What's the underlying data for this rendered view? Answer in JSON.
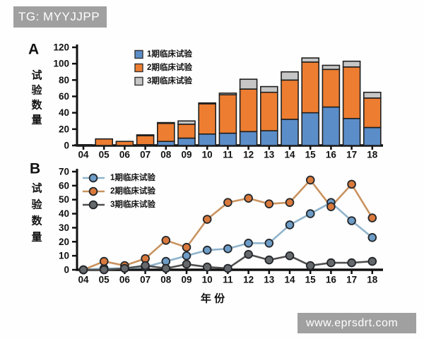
{
  "watermarks": {
    "top_left": "TG: MYYJJPP",
    "bottom_right": "www.eprsdrt.com"
  },
  "colors": {
    "phase1_fill": "#5b8dc8",
    "phase2_fill": "#ed7d31",
    "phase3_fill": "#c6c6c6",
    "bar_outline": "#1f1f1f",
    "line1": "#8fb3cc",
    "line2": "#c9935f",
    "line3": "#4f4f4f",
    "marker1": "#6d9cc6",
    "marker2": "#d9793c",
    "marker3": "#66696c",
    "marker_outline": "#22262a",
    "axis": "#111111",
    "watermark_bg": "#a0a0a0",
    "watermark_text": "#ffffff"
  },
  "chart_data": [
    {
      "id": "A",
      "type": "bar",
      "stacked": true,
      "panel_label": "A",
      "ylabel": "试验数量",
      "xlabel": "",
      "categories": [
        "04",
        "05",
        "06",
        "07",
        "08",
        "09",
        "10",
        "11",
        "12",
        "13",
        "14",
        "15",
        "16",
        "17",
        "18"
      ],
      "series": [
        {
          "name": "1期临床试验",
          "values": [
            0,
            0,
            0,
            1,
            5,
            9,
            14,
            15,
            17,
            18,
            32,
            40,
            47,
            33,
            22
          ]
        },
        {
          "name": "2期临床试验",
          "values": [
            1,
            8,
            5,
            11,
            22,
            17,
            37,
            47,
            52,
            47,
            48,
            62,
            46,
            63,
            36
          ]
        },
        {
          "name": "3期临床试验",
          "values": [
            0,
            0,
            0,
            1,
            1,
            4,
            1,
            2,
            12,
            7,
            10,
            5,
            5,
            7,
            7
          ]
        }
      ],
      "ylim": [
        0,
        120
      ],
      "yticks": [
        0,
        20,
        40,
        60,
        80,
        100,
        120
      ],
      "grid": false,
      "legend_position": "top-left"
    },
    {
      "id": "B",
      "type": "line",
      "panel_label": "B",
      "ylabel": "试验数量",
      "xlabel": "年 份",
      "categories": [
        "04",
        "05",
        "06",
        "07",
        "08",
        "09",
        "10",
        "11",
        "12",
        "13",
        "14",
        "15",
        "16",
        "17",
        "18"
      ],
      "series": [
        {
          "name": "1期临床试验",
          "values": [
            0,
            1,
            1,
            2,
            6,
            10,
            14,
            15,
            19,
            19,
            32,
            40,
            48,
            35,
            23
          ]
        },
        {
          "name": "2期临床试验",
          "values": [
            0,
            6,
            3,
            8,
            21,
            16,
            36,
            48,
            51,
            47,
            48,
            64,
            45,
            61,
            37
          ]
        },
        {
          "name": "3期临床试验",
          "values": [
            0,
            0,
            1,
            3,
            1,
            4,
            2,
            1,
            11,
            7,
            10,
            3,
            5,
            5,
            6
          ]
        }
      ],
      "ylim": [
        0,
        70
      ],
      "yticks": [
        0,
        10,
        20,
        30,
        40,
        50,
        60,
        70
      ],
      "grid": false,
      "legend_position": "top-left"
    }
  ]
}
